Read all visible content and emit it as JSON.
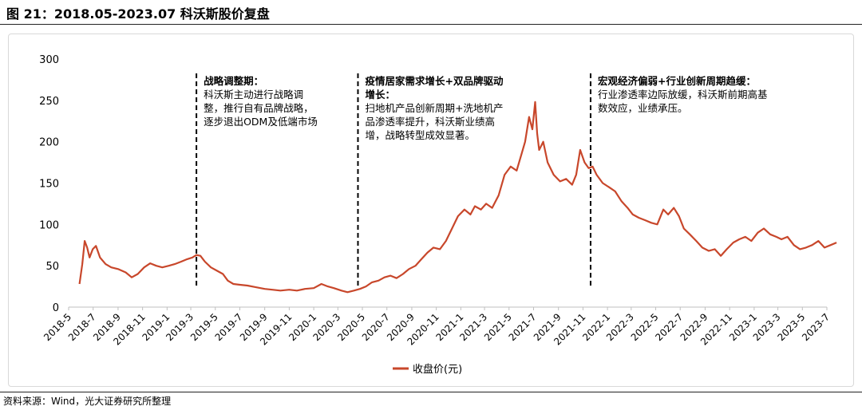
{
  "header": {
    "title": "图 21：2018.05-2023.07 科沃斯股价复盘"
  },
  "footer": {
    "source": "资料来源：Wind，光大证券研究所整理"
  },
  "colors": {
    "line": "#c8472b",
    "divider": "#000000",
    "axis": "#bfbfbf"
  },
  "chart_data": {
    "type": "line",
    "title": "",
    "xlabel": "",
    "ylabel": "",
    "ylim": [
      0,
      300
    ],
    "yticks": [
      0,
      50,
      100,
      150,
      200,
      250,
      300
    ],
    "grid": false,
    "legend": "bottom-center",
    "x_tick_labels": [
      "2018-5",
      "2018-7",
      "2018-9",
      "2018-11",
      "2019-1",
      "2019-3",
      "2019-5",
      "2019-7",
      "2019-9",
      "2019-11",
      "2020-1",
      "2020-3",
      "2020-5",
      "2020-7",
      "2020-9",
      "2020-11",
      "2021-1",
      "2021-3",
      "2021-5",
      "2021-7",
      "2021-9",
      "2021-11",
      "2022-1",
      "2022-3",
      "2022-5",
      "2022-7",
      "2022-9",
      "2022-11",
      "2023-1",
      "2023-3",
      "2023-5",
      "2023-7"
    ],
    "series": [
      {
        "name": "收盘价(元)",
        "color": "#c8472b",
        "points": [
          [
            "2018-05-28",
            28
          ],
          [
            "2018-06-04",
            52
          ],
          [
            "2018-06-10",
            80
          ],
          [
            "2018-06-16",
            72
          ],
          [
            "2018-06-22",
            60
          ],
          [
            "2018-06-30",
            70
          ],
          [
            "2018-07-08",
            74
          ],
          [
            "2018-07-18",
            60
          ],
          [
            "2018-08-01",
            52
          ],
          [
            "2018-08-15",
            48
          ],
          [
            "2018-09-01",
            46
          ],
          [
            "2018-09-20",
            42
          ],
          [
            "2018-10-05",
            36
          ],
          [
            "2018-10-20",
            40
          ],
          [
            "2018-11-05",
            48
          ],
          [
            "2018-11-20",
            53
          ],
          [
            "2018-12-05",
            50
          ],
          [
            "2018-12-20",
            48
          ],
          [
            "2019-01-05",
            50
          ],
          [
            "2019-01-20",
            52
          ],
          [
            "2019-02-05",
            55
          ],
          [
            "2019-02-20",
            58
          ],
          [
            "2019-03-05",
            60
          ],
          [
            "2019-03-15",
            63
          ],
          [
            "2019-03-25",
            62
          ],
          [
            "2019-04-05",
            55
          ],
          [
            "2019-04-20",
            48
          ],
          [
            "2019-05-05",
            44
          ],
          [
            "2019-05-20",
            40
          ],
          [
            "2019-06-01",
            32
          ],
          [
            "2019-06-15",
            28
          ],
          [
            "2019-07-01",
            27
          ],
          [
            "2019-07-20",
            26
          ],
          [
            "2019-08-10",
            24
          ],
          [
            "2019-09-01",
            22
          ],
          [
            "2019-09-20",
            21
          ],
          [
            "2019-10-10",
            20
          ],
          [
            "2019-11-01",
            21
          ],
          [
            "2019-11-20",
            20
          ],
          [
            "2019-12-10",
            22
          ],
          [
            "2020-01-01",
            23
          ],
          [
            "2020-01-20",
            28
          ],
          [
            "2020-02-05",
            25
          ],
          [
            "2020-02-20",
            23
          ],
          [
            "2020-03-10",
            20
          ],
          [
            "2020-03-25",
            18
          ],
          [
            "2020-04-10",
            20
          ],
          [
            "2020-04-25",
            22
          ],
          [
            "2020-05-10",
            25
          ],
          [
            "2020-05-25",
            30
          ],
          [
            "2020-06-10",
            32
          ],
          [
            "2020-06-25",
            36
          ],
          [
            "2020-07-10",
            38
          ],
          [
            "2020-07-25",
            35
          ],
          [
            "2020-08-10",
            40
          ],
          [
            "2020-08-25",
            46
          ],
          [
            "2020-09-10",
            50
          ],
          [
            "2020-09-25",
            58
          ],
          [
            "2020-10-10",
            66
          ],
          [
            "2020-10-25",
            72
          ],
          [
            "2020-11-10",
            70
          ],
          [
            "2020-11-25",
            80
          ],
          [
            "2020-12-10",
            95
          ],
          [
            "2020-12-25",
            110
          ],
          [
            "2021-01-10",
            118
          ],
          [
            "2021-01-25",
            112
          ],
          [
            "2021-02-05",
            122
          ],
          [
            "2021-02-20",
            118
          ],
          [
            "2021-03-05",
            125
          ],
          [
            "2021-03-20",
            120
          ],
          [
            "2021-04-05",
            135
          ],
          [
            "2021-04-20",
            160
          ],
          [
            "2021-05-05",
            170
          ],
          [
            "2021-05-20",
            165
          ],
          [
            "2021-06-01",
            185
          ],
          [
            "2021-06-10",
            200
          ],
          [
            "2021-06-20",
            230
          ],
          [
            "2021-06-28",
            215
          ],
          [
            "2021-07-05",
            248
          ],
          [
            "2021-07-10",
            210
          ],
          [
            "2021-07-15",
            190
          ],
          [
            "2021-07-25",
            200
          ],
          [
            "2021-08-05",
            175
          ],
          [
            "2021-08-20",
            160
          ],
          [
            "2021-09-05",
            152
          ],
          [
            "2021-09-20",
            155
          ],
          [
            "2021-10-05",
            148
          ],
          [
            "2021-10-15",
            160
          ],
          [
            "2021-10-25",
            190
          ],
          [
            "2021-11-05",
            175
          ],
          [
            "2021-11-15",
            168
          ],
          [
            "2021-11-25",
            170
          ],
          [
            "2021-12-05",
            160
          ],
          [
            "2021-12-20",
            150
          ],
          [
            "2022-01-05",
            145
          ],
          [
            "2022-01-20",
            140
          ],
          [
            "2022-02-05",
            128
          ],
          [
            "2022-02-20",
            120
          ],
          [
            "2022-03-05",
            112
          ],
          [
            "2022-03-20",
            108
          ],
          [
            "2022-04-05",
            105
          ],
          [
            "2022-04-20",
            102
          ],
          [
            "2022-05-05",
            100
          ],
          [
            "2022-05-20",
            118
          ],
          [
            "2022-06-01",
            112
          ],
          [
            "2022-06-15",
            120
          ],
          [
            "2022-06-28",
            110
          ],
          [
            "2022-07-10",
            95
          ],
          [
            "2022-07-25",
            88
          ],
          [
            "2022-08-10",
            80
          ],
          [
            "2022-08-25",
            72
          ],
          [
            "2022-09-10",
            68
          ],
          [
            "2022-09-25",
            70
          ],
          [
            "2022-10-10",
            62
          ],
          [
            "2022-10-25",
            70
          ],
          [
            "2022-11-10",
            78
          ],
          [
            "2022-11-25",
            82
          ],
          [
            "2022-12-10",
            85
          ],
          [
            "2022-12-25",
            80
          ],
          [
            "2023-01-10",
            90
          ],
          [
            "2023-01-25",
            95
          ],
          [
            "2023-02-10",
            88
          ],
          [
            "2023-02-25",
            85
          ],
          [
            "2023-03-10",
            82
          ],
          [
            "2023-03-25",
            85
          ],
          [
            "2023-04-10",
            75
          ],
          [
            "2023-04-25",
            70
          ],
          [
            "2023-05-10",
            72
          ],
          [
            "2023-05-25",
            75
          ],
          [
            "2023-06-10",
            80
          ],
          [
            "2023-06-25",
            72
          ],
          [
            "2023-07-10",
            75
          ],
          [
            "2023-07-25",
            78
          ]
        ]
      }
    ],
    "annotations": [
      {
        "date": "2019-03-15",
        "title": "战略调整期：",
        "lines": [
          "科沃斯主动进行战略调",
          "整，推行自有品牌战略，",
          "逐步退出ODM及低端市场"
        ]
      },
      {
        "date": "2020-04-20",
        "title_lines": [
          "疫情居家需求增长+双品牌驱动",
          "增长："
        ],
        "lines": [
          "扫地机产品创新周期+洗地机产",
          "品渗透率提升，科沃斯业绩高",
          "增，战略转型成效显著。"
        ]
      },
      {
        "date": "2021-11-20",
        "title": "宏观经济偏弱+行业创新周期趋缓：",
        "lines": [
          "行业渗透率边际放缓，科沃斯前期高基",
          "数效应，业绩承压。"
        ]
      }
    ]
  }
}
